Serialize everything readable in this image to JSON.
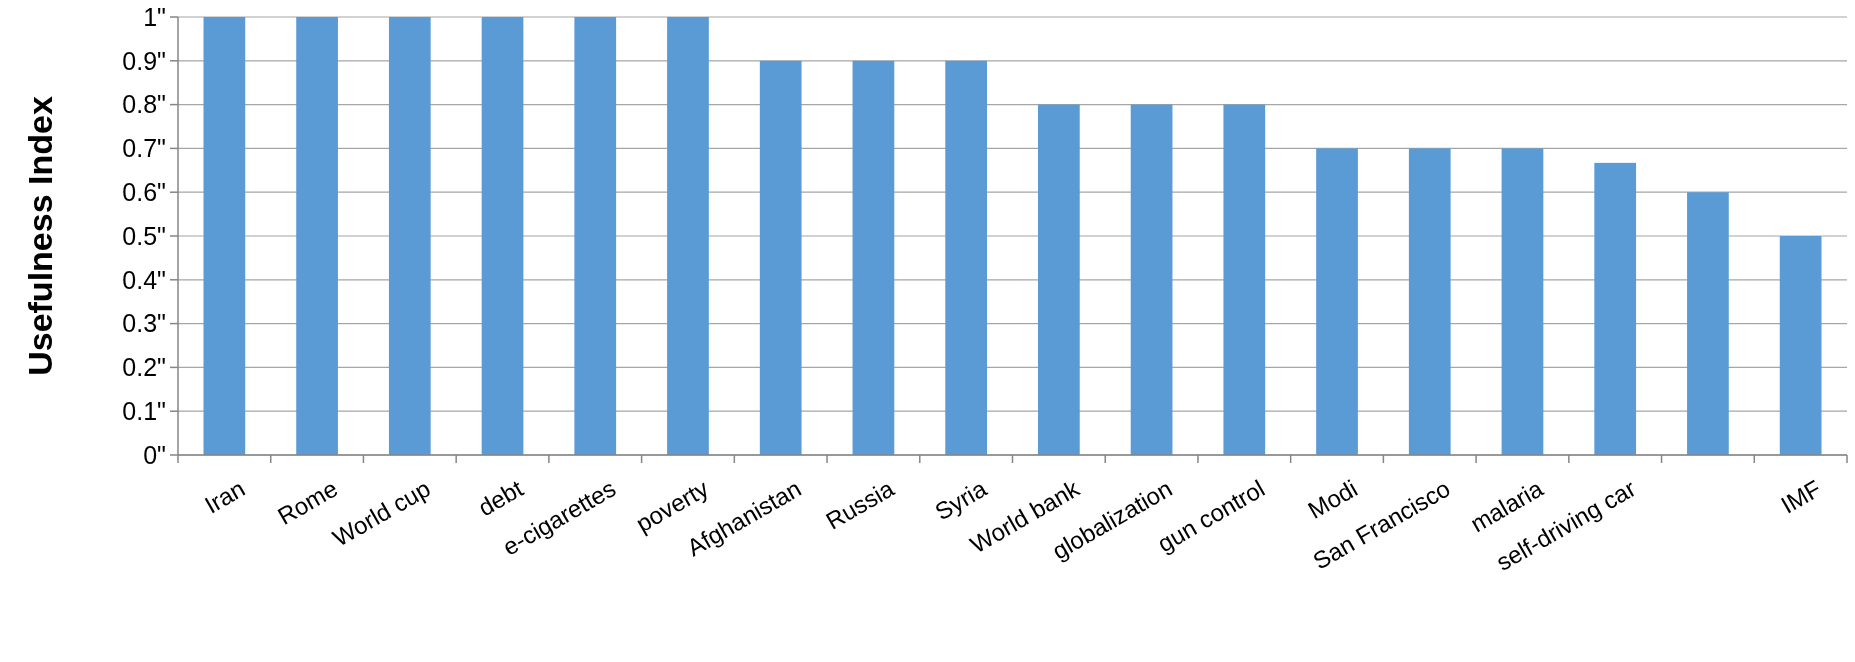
{
  "chart_data": {
    "type": "bar",
    "ylabel": "Usefulness Index",
    "categories": [
      "Iran",
      "Rome",
      "World cup",
      "debt",
      "e-cigarettes",
      "poverty",
      "Afghanistan",
      "Russia",
      "Syria",
      "World bank",
      "globalization",
      "gun control",
      "Modi",
      "San Francisco",
      "malaria",
      "self-driving car",
      null,
      "IMF"
    ],
    "values": [
      1,
      1,
      1,
      1,
      1,
      1,
      0.9,
      0.9,
      0.9,
      0.8,
      0.8,
      0.8,
      0.7,
      0.7,
      0.7,
      0.667,
      0.6,
      0.5
    ],
    "color": "#5b9bd5",
    "ylim": [
      0,
      1
    ],
    "yticks": [
      {
        "value": 0,
        "label": "0\""
      },
      {
        "value": 0.1,
        "label": "0.1\""
      },
      {
        "value": 0.2,
        "label": "0.2\""
      },
      {
        "value": 0.3,
        "label": "0.3\""
      },
      {
        "value": 0.4,
        "label": "0.4\""
      },
      {
        "value": 0.5,
        "label": "0.5\""
      },
      {
        "value": 0.6,
        "label": "0.6\""
      },
      {
        "value": 0.7,
        "label": "0.7\""
      },
      {
        "value": 0.8,
        "label": "0.8\""
      },
      {
        "value": 0.9,
        "label": "0.9\""
      },
      {
        "value": 1,
        "label": "1\""
      }
    ],
    "grid": "y"
  }
}
